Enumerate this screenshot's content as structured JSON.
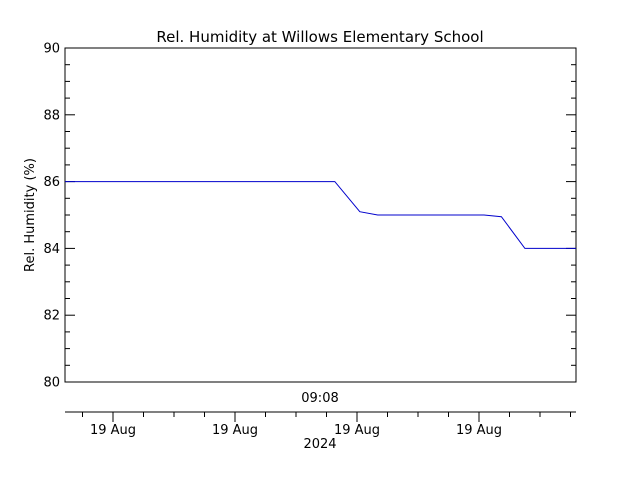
{
  "chart_data": {
    "type": "line",
    "title": "Rel. Humidity at Willows Elementary School",
    "ylabel": "Rel. Humidity (%)",
    "ylim": [
      80,
      90
    ],
    "y_ticks": [
      "80",
      "82",
      "84",
      "86",
      "88",
      "90"
    ],
    "time_label": "09:08",
    "x_tick_labels": [
      "19 Aug",
      "19 Aug",
      "19 Aug",
      "19 Aug"
    ],
    "year_label": "2024",
    "grid": false,
    "line_color": "#0000cc",
    "series": [
      {
        "x": [
          0.0,
          0.528,
          0.577,
          0.612,
          0.82,
          0.854,
          0.9,
          1.0
        ],
        "values": [
          86.0,
          86.0,
          85.1,
          85.0,
          85.0,
          84.95,
          84.0,
          84.0
        ]
      }
    ]
  }
}
